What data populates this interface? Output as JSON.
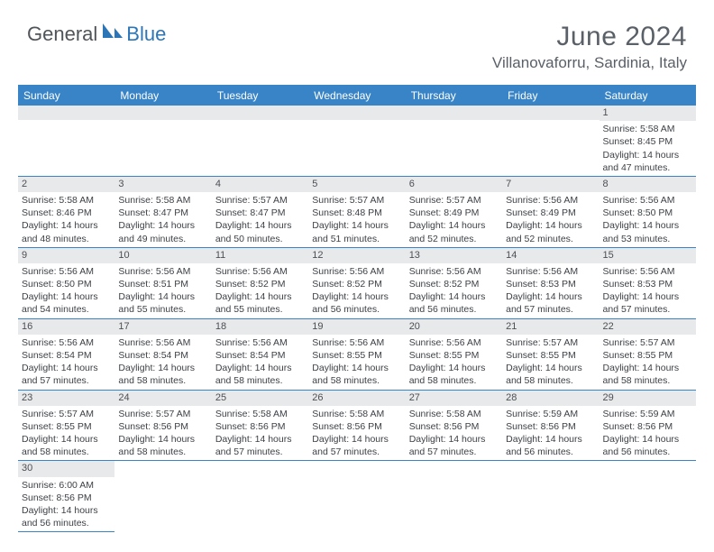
{
  "logo": {
    "part1": "General",
    "part2": "Blue"
  },
  "title": "June 2024",
  "location": "Villanovaforru, Sardinia, Italy",
  "colors": {
    "header_bg": "#3984c6",
    "header_text": "#ffffff",
    "daynum_bg": "#e8e9ea",
    "text": "#3d4146",
    "border": "#3984c6",
    "title_color": "#5a6067"
  },
  "day_headers": [
    "Sunday",
    "Monday",
    "Tuesday",
    "Wednesday",
    "Thursday",
    "Friday",
    "Saturday"
  ],
  "weeks": [
    [
      {
        "n": "",
        "lines": []
      },
      {
        "n": "",
        "lines": []
      },
      {
        "n": "",
        "lines": []
      },
      {
        "n": "",
        "lines": []
      },
      {
        "n": "",
        "lines": []
      },
      {
        "n": "",
        "lines": []
      },
      {
        "n": "1",
        "lines": [
          "Sunrise: 5:58 AM",
          "Sunset: 8:45 PM",
          "Daylight: 14 hours",
          "and 47 minutes."
        ]
      }
    ],
    [
      {
        "n": "2",
        "lines": [
          "Sunrise: 5:58 AM",
          "Sunset: 8:46 PM",
          "Daylight: 14 hours",
          "and 48 minutes."
        ]
      },
      {
        "n": "3",
        "lines": [
          "Sunrise: 5:58 AM",
          "Sunset: 8:47 PM",
          "Daylight: 14 hours",
          "and 49 minutes."
        ]
      },
      {
        "n": "4",
        "lines": [
          "Sunrise: 5:57 AM",
          "Sunset: 8:47 PM",
          "Daylight: 14 hours",
          "and 50 minutes."
        ]
      },
      {
        "n": "5",
        "lines": [
          "Sunrise: 5:57 AM",
          "Sunset: 8:48 PM",
          "Daylight: 14 hours",
          "and 51 minutes."
        ]
      },
      {
        "n": "6",
        "lines": [
          "Sunrise: 5:57 AM",
          "Sunset: 8:49 PM",
          "Daylight: 14 hours",
          "and 52 minutes."
        ]
      },
      {
        "n": "7",
        "lines": [
          "Sunrise: 5:56 AM",
          "Sunset: 8:49 PM",
          "Daylight: 14 hours",
          "and 52 minutes."
        ]
      },
      {
        "n": "8",
        "lines": [
          "Sunrise: 5:56 AM",
          "Sunset: 8:50 PM",
          "Daylight: 14 hours",
          "and 53 minutes."
        ]
      }
    ],
    [
      {
        "n": "9",
        "lines": [
          "Sunrise: 5:56 AM",
          "Sunset: 8:50 PM",
          "Daylight: 14 hours",
          "and 54 minutes."
        ]
      },
      {
        "n": "10",
        "lines": [
          "Sunrise: 5:56 AM",
          "Sunset: 8:51 PM",
          "Daylight: 14 hours",
          "and 55 minutes."
        ]
      },
      {
        "n": "11",
        "lines": [
          "Sunrise: 5:56 AM",
          "Sunset: 8:52 PM",
          "Daylight: 14 hours",
          "and 55 minutes."
        ]
      },
      {
        "n": "12",
        "lines": [
          "Sunrise: 5:56 AM",
          "Sunset: 8:52 PM",
          "Daylight: 14 hours",
          "and 56 minutes."
        ]
      },
      {
        "n": "13",
        "lines": [
          "Sunrise: 5:56 AM",
          "Sunset: 8:52 PM",
          "Daylight: 14 hours",
          "and 56 minutes."
        ]
      },
      {
        "n": "14",
        "lines": [
          "Sunrise: 5:56 AM",
          "Sunset: 8:53 PM",
          "Daylight: 14 hours",
          "and 57 minutes."
        ]
      },
      {
        "n": "15",
        "lines": [
          "Sunrise: 5:56 AM",
          "Sunset: 8:53 PM",
          "Daylight: 14 hours",
          "and 57 minutes."
        ]
      }
    ],
    [
      {
        "n": "16",
        "lines": [
          "Sunrise: 5:56 AM",
          "Sunset: 8:54 PM",
          "Daylight: 14 hours",
          "and 57 minutes."
        ]
      },
      {
        "n": "17",
        "lines": [
          "Sunrise: 5:56 AM",
          "Sunset: 8:54 PM",
          "Daylight: 14 hours",
          "and 58 minutes."
        ]
      },
      {
        "n": "18",
        "lines": [
          "Sunrise: 5:56 AM",
          "Sunset: 8:54 PM",
          "Daylight: 14 hours",
          "and 58 minutes."
        ]
      },
      {
        "n": "19",
        "lines": [
          "Sunrise: 5:56 AM",
          "Sunset: 8:55 PM",
          "Daylight: 14 hours",
          "and 58 minutes."
        ]
      },
      {
        "n": "20",
        "lines": [
          "Sunrise: 5:56 AM",
          "Sunset: 8:55 PM",
          "Daylight: 14 hours",
          "and 58 minutes."
        ]
      },
      {
        "n": "21",
        "lines": [
          "Sunrise: 5:57 AM",
          "Sunset: 8:55 PM",
          "Daylight: 14 hours",
          "and 58 minutes."
        ]
      },
      {
        "n": "22",
        "lines": [
          "Sunrise: 5:57 AM",
          "Sunset: 8:55 PM",
          "Daylight: 14 hours",
          "and 58 minutes."
        ]
      }
    ],
    [
      {
        "n": "23",
        "lines": [
          "Sunrise: 5:57 AM",
          "Sunset: 8:55 PM",
          "Daylight: 14 hours",
          "and 58 minutes."
        ]
      },
      {
        "n": "24",
        "lines": [
          "Sunrise: 5:57 AM",
          "Sunset: 8:56 PM",
          "Daylight: 14 hours",
          "and 58 minutes."
        ]
      },
      {
        "n": "25",
        "lines": [
          "Sunrise: 5:58 AM",
          "Sunset: 8:56 PM",
          "Daylight: 14 hours",
          "and 57 minutes."
        ]
      },
      {
        "n": "26",
        "lines": [
          "Sunrise: 5:58 AM",
          "Sunset: 8:56 PM",
          "Daylight: 14 hours",
          "and 57 minutes."
        ]
      },
      {
        "n": "27",
        "lines": [
          "Sunrise: 5:58 AM",
          "Sunset: 8:56 PM",
          "Daylight: 14 hours",
          "and 57 minutes."
        ]
      },
      {
        "n": "28",
        "lines": [
          "Sunrise: 5:59 AM",
          "Sunset: 8:56 PM",
          "Daylight: 14 hours",
          "and 56 minutes."
        ]
      },
      {
        "n": "29",
        "lines": [
          "Sunrise: 5:59 AM",
          "Sunset: 8:56 PM",
          "Daylight: 14 hours",
          "and 56 minutes."
        ]
      }
    ],
    [
      {
        "n": "30",
        "lines": [
          "Sunrise: 6:00 AM",
          "Sunset: 8:56 PM",
          "Daylight: 14 hours",
          "and 56 minutes."
        ]
      },
      {
        "n": "",
        "lines": []
      },
      {
        "n": "",
        "lines": []
      },
      {
        "n": "",
        "lines": []
      },
      {
        "n": "",
        "lines": []
      },
      {
        "n": "",
        "lines": []
      },
      {
        "n": "",
        "lines": []
      }
    ]
  ]
}
